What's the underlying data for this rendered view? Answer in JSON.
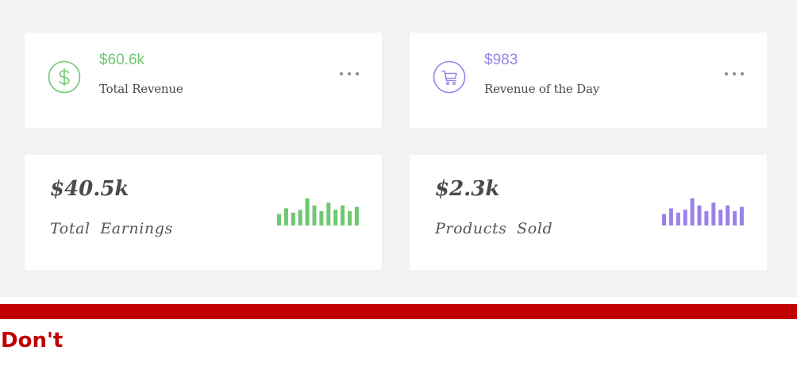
{
  "colors": {
    "green": "#6dc870",
    "purple": "#9a82ea",
    "dont_red": "#c00000"
  },
  "cards": {
    "total_revenue": {
      "value": "$60.6k",
      "label": "Total Revenue",
      "icon": "dollar-icon"
    },
    "revenue_day": {
      "value": "$983",
      "label": "Revenue of the Day",
      "icon": "cart-icon"
    },
    "total_earnings": {
      "value": "$40.5k",
      "label": "Total Earnings"
    },
    "products_sold": {
      "value": "$2.3k",
      "label": "Products Sold"
    }
  },
  "sparklines": {
    "earnings": [
      0.4,
      0.6,
      0.45,
      0.55,
      0.95,
      0.7,
      0.5,
      0.8,
      0.55,
      0.7,
      0.5,
      0.65
    ],
    "products": [
      0.4,
      0.6,
      0.45,
      0.55,
      0.95,
      0.7,
      0.5,
      0.8,
      0.55,
      0.7,
      0.5,
      0.65
    ]
  },
  "footer": {
    "label": "Don't"
  }
}
